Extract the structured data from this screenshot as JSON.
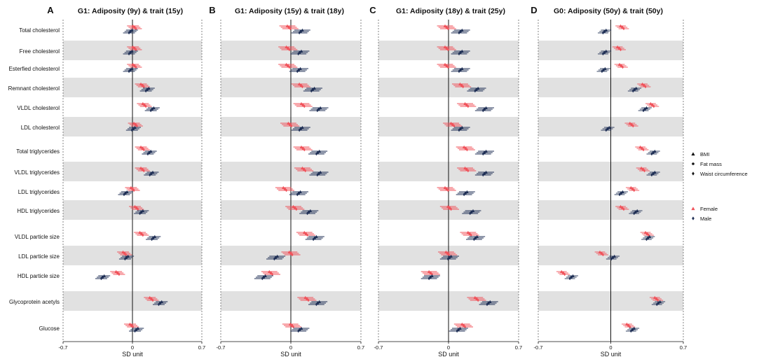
{
  "chart_data": {
    "type": "forest",
    "xlabel": "SD unit",
    "xlim": [
      -0.7,
      0.7
    ],
    "x_ticks": [
      "-0.7",
      "0",
      "0.7"
    ],
    "colors": {
      "female": "#f0525a",
      "male": "#1f2f55"
    },
    "legend": {
      "exposures": [
        "BMI",
        "Fat mass",
        "Waist circumference"
      ],
      "sexes": [
        "Female",
        "Male"
      ],
      "placement": "right"
    },
    "traits": [
      "Total cholesterol",
      "Free cholesterol",
      "Esterfied cholesterol",
      "Remnant cholesterol",
      "VLDL cholesterol",
      "LDL cholesterol",
      "Total triglycerides",
      "VLDL triglycerides",
      "LDL triglycerides",
      "HDL triglycerides",
      "VLDL particle size",
      "LDL particle size",
      "HDL particle size",
      "Glycoprotein acetyls",
      "Glucose"
    ],
    "panels": [
      {
        "letter": "A",
        "title": "G1: Adiposity (9y) & trait (15y)",
        "female": [
          0.02,
          0.02,
          0.02,
          0.1,
          0.12,
          0.03,
          0.1,
          0.1,
          0.0,
          0.04,
          0.09,
          -0.08,
          -0.15,
          0.19,
          -0.01
        ],
        "male": [
          -0.02,
          -0.02,
          -0.02,
          0.15,
          0.2,
          0.01,
          0.17,
          0.19,
          -0.07,
          0.09,
          0.21,
          -0.06,
          -0.3,
          0.28,
          0.04
        ],
        "ci": 0.06
      },
      {
        "letter": "B",
        "title": "G1: Adiposity (15y) & trait (18y)",
        "female": [
          -0.02,
          -0.03,
          -0.03,
          0.1,
          0.12,
          -0.01,
          0.12,
          0.13,
          -0.06,
          0.04,
          0.15,
          0.0,
          -0.2,
          0.16,
          0.01
        ],
        "male": [
          0.1,
          0.09,
          0.08,
          0.22,
          0.28,
          0.1,
          0.27,
          0.28,
          0.08,
          0.18,
          0.24,
          -0.15,
          -0.27,
          0.27,
          0.09
        ],
        "ci": 0.08
      },
      {
        "letter": "C",
        "title": "G1: Adiposity (18y) & trait (25y)",
        "female": [
          -0.02,
          -0.02,
          -0.02,
          0.13,
          0.18,
          0.04,
          0.17,
          0.18,
          -0.02,
          0.01,
          0.21,
          -0.01,
          -0.18,
          0.28,
          0.15
        ],
        "male": [
          0.12,
          0.12,
          0.12,
          0.28,
          0.36,
          0.12,
          0.36,
          0.36,
          0.17,
          0.23,
          0.27,
          0.01,
          -0.18,
          0.4,
          0.1
        ],
        "ci": 0.08
      },
      {
        "letter": "D",
        "title": "G0: Adiposity (50y) & trait (50y)",
        "female": [
          0.11,
          0.08,
          0.1,
          0.32,
          0.4,
          0.2,
          0.3,
          0.31,
          0.21,
          0.11,
          0.35,
          -0.09,
          -0.46,
          0.44,
          0.17
        ],
        "male": [
          -0.06,
          -0.06,
          -0.07,
          0.23,
          0.33,
          -0.03,
          0.41,
          0.41,
          0.1,
          0.24,
          0.36,
          0.02,
          -0.38,
          0.46,
          0.21
        ],
        "ci": 0.05
      }
    ]
  }
}
